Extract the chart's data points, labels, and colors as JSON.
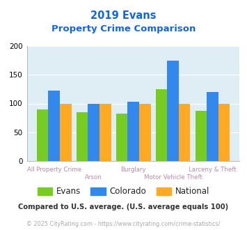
{
  "title_line1": "2019 Evans",
  "title_line2": "Property Crime Comparison",
  "categories": [
    "All Property Crime",
    "Arson",
    "Burglary",
    "Motor Vehicle Theft",
    "Larceny & Theft"
  ],
  "series": {
    "Evans": [
      90,
      85,
      83,
      125,
      87
    ],
    "Colorado": [
      123,
      100,
      103,
      175,
      120
    ],
    "National": [
      100,
      100,
      100,
      100,
      100
    ]
  },
  "colors": {
    "Evans": "#77cc22",
    "Colorado": "#3388ee",
    "National": "#ffaa22"
  },
  "ylim": [
    0,
    200
  ],
  "yticks": [
    0,
    50,
    100,
    150,
    200
  ],
  "background_color": "#deeef4",
  "title_color": "#1166dd",
  "xlabel_color": "#bb88aa",
  "legend_fontsize": 8.5,
  "footnote1": "Compared to U.S. average. (U.S. average equals 100)",
  "footnote2": "© 2025 CityRating.com - https://www.cityrating.com/crime-statistics/",
  "footnote1_color": "#333333",
  "footnote2_color": "#aaaaaa",
  "footnote2_link_color": "#3388cc"
}
